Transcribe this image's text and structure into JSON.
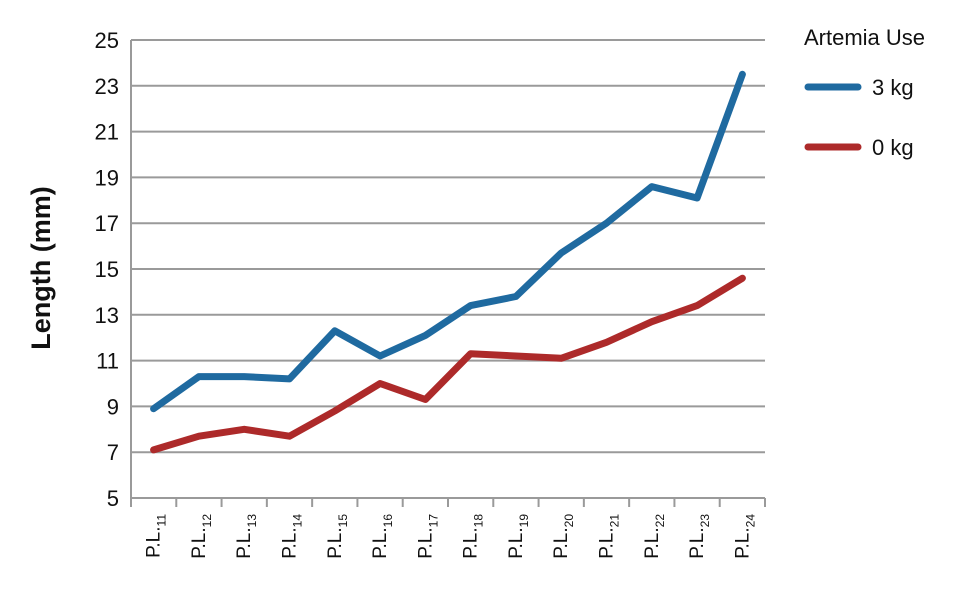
{
  "chart_data": {
    "type": "line",
    "title": "",
    "xlabel": "",
    "ylabel": "Length (mm)",
    "ylim": [
      5,
      25
    ],
    "yticks": [
      5,
      7,
      9,
      11,
      13,
      15,
      17,
      19,
      21,
      23,
      25
    ],
    "grid": true,
    "legend_position": "top-right",
    "legend_title": "Artemia Use",
    "categories": [
      "P.L.11",
      "P.L.12",
      "P.L.13",
      "P.L.14",
      "P.L.15",
      "P.L.16",
      "P.L.17",
      "P.L.18",
      "P.L.19",
      "P.L.20",
      "P.L.21",
      "P.L.22",
      "P.L.23",
      "P.L.24"
    ],
    "category_parts": [
      [
        "P.L.",
        "11"
      ],
      [
        "P.L.",
        "12"
      ],
      [
        "P.L.",
        "13"
      ],
      [
        "P.L.",
        "14"
      ],
      [
        "P.L.",
        "15"
      ],
      [
        "P.L.",
        "16"
      ],
      [
        "P.L.",
        "17"
      ],
      [
        "P.L.",
        "18"
      ],
      [
        "P.L.",
        "19"
      ],
      [
        "P.L.",
        "20"
      ],
      [
        "P.L.",
        "21"
      ],
      [
        "P.L.",
        "22"
      ],
      [
        "P.L.",
        "23"
      ],
      [
        "P.L.",
        "24"
      ]
    ],
    "series": [
      {
        "name": "3 kg",
        "color": "#1f6aa0",
        "values": [
          8.9,
          10.3,
          10.3,
          10.2,
          12.3,
          11.2,
          12.1,
          13.4,
          13.8,
          15.7,
          17.0,
          18.6,
          18.1,
          23.5
        ]
      },
      {
        "name": "0 kg",
        "color": "#ad2a2a",
        "values": [
          7.1,
          7.7,
          8.0,
          7.7,
          8.8,
          10.0,
          9.3,
          11.3,
          11.2,
          11.1,
          11.8,
          12.7,
          13.4,
          14.6
        ]
      }
    ]
  }
}
